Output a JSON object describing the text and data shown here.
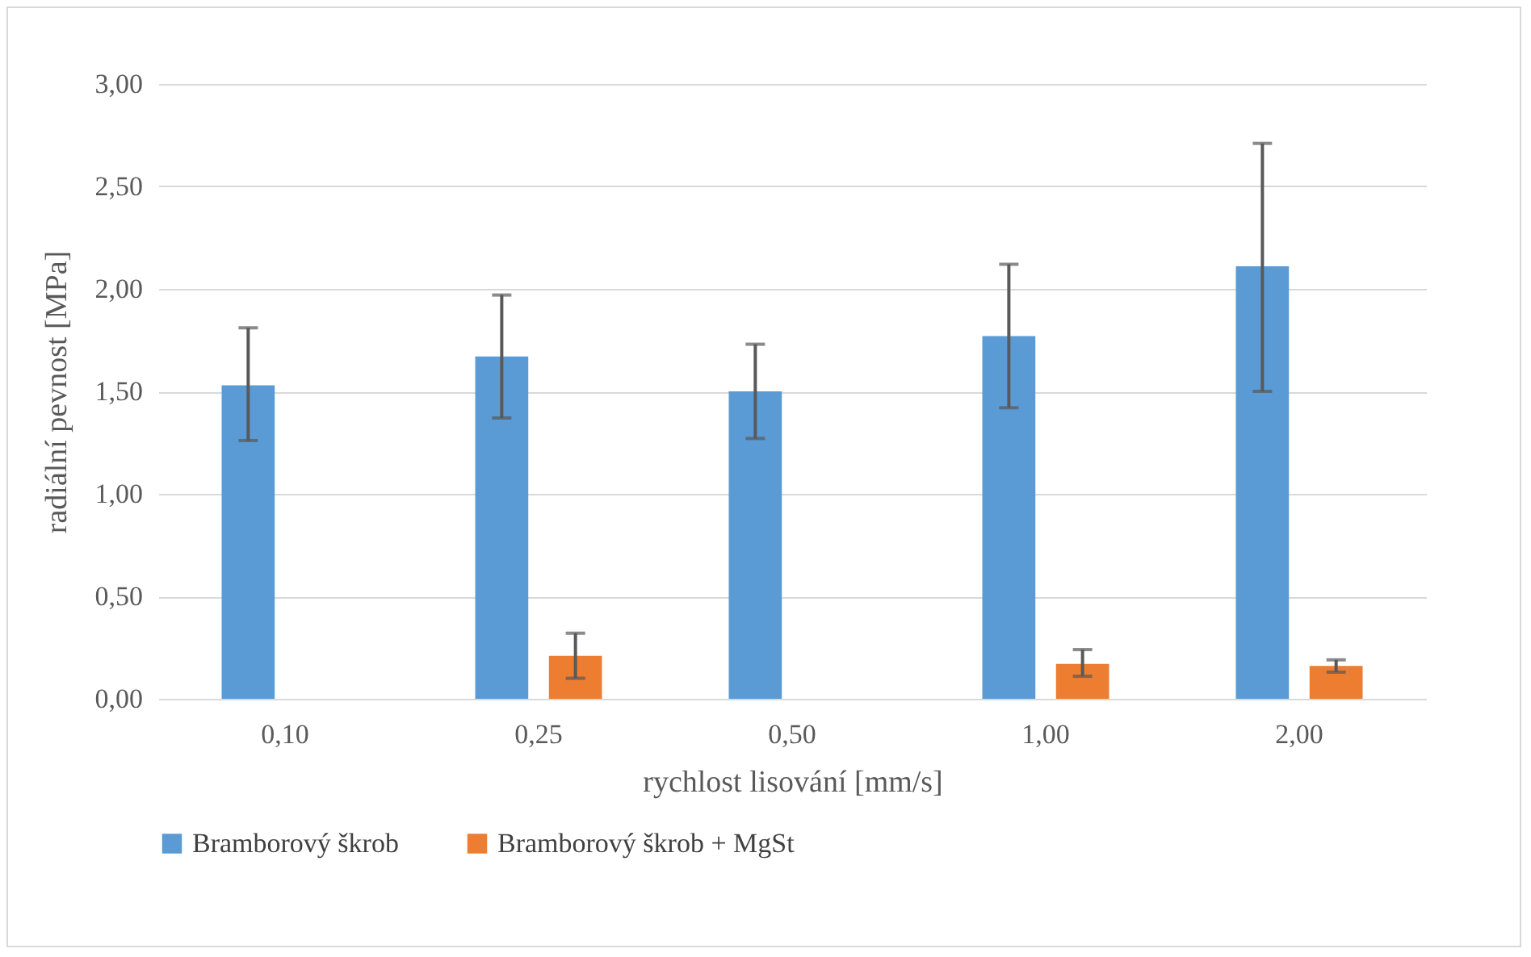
{
  "chart_data": {
    "type": "bar",
    "xlabel": "rychlost lisování [mm/s]",
    "ylabel": "radiální pevnost [MPa]",
    "categories": [
      "0,10",
      "0,25",
      "0,50",
      "1,00",
      "2,00"
    ],
    "series": [
      {
        "name": "Bramborový škrob",
        "color": "#5b9bd5",
        "values": [
          1.53,
          1.67,
          1.5,
          1.77,
          2.11
        ],
        "errors": [
          [
            1.26,
            1.81
          ],
          [
            1.37,
            1.97
          ],
          [
            1.27,
            1.73
          ],
          [
            1.42,
            2.12
          ],
          [
            1.5,
            2.71
          ]
        ]
      },
      {
        "name": "Bramborový škrob + MgSt",
        "color": "#ed7d31",
        "values": [
          0,
          0.21,
          0,
          0.17,
          0.16
        ],
        "errors": [
          null,
          [
            0.1,
            0.32
          ],
          null,
          [
            0.11,
            0.24
          ],
          [
            0.13,
            0.19
          ]
        ]
      }
    ],
    "ylim": [
      0,
      3
    ],
    "yticks": [
      {
        "value": 0,
        "label": "0,00"
      },
      {
        "value": 0.5,
        "label": "0,50"
      },
      {
        "value": 1,
        "label": "1,00"
      },
      {
        "value": 1.5,
        "label": "1,50"
      },
      {
        "value": 2,
        "label": "2,00"
      },
      {
        "value": 2.5,
        "label": "2,50"
      },
      {
        "value": 3,
        "label": "3,00"
      }
    ],
    "grid": "y",
    "legend": "bottom"
  }
}
